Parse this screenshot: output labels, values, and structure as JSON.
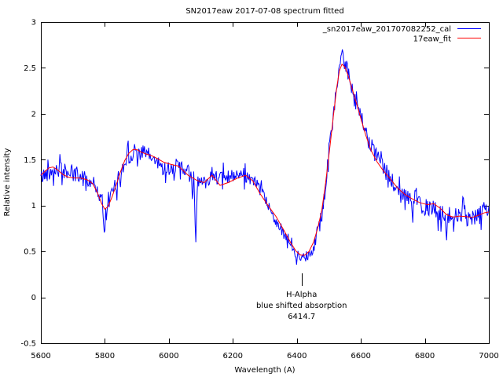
{
  "window": {
    "background": "#ffffff",
    "text_color": "#000000"
  },
  "chart_data": {
    "type": "line",
    "title": "SN2017eaw 2017-07-08 spectrum fitted",
    "xlabel": "Wavelength (A)",
    "ylabel": "Relative intensity",
    "xlim": [
      5600,
      7000
    ],
    "ylim": [
      -0.5,
      3
    ],
    "xticks": [
      5600,
      5800,
      6000,
      6200,
      6400,
      6600,
      6800,
      7000
    ],
    "xtick_labels": [
      "5600",
      "5800",
      "6000",
      "6200",
      "6400",
      "6600",
      "6800",
      "7000"
    ],
    "yticks": [
      -0.5,
      0,
      0.5,
      1,
      1.5,
      2,
      2.5,
      3
    ],
    "ytick_labels": [
      "-0.5",
      "0",
      "0.5",
      "1",
      "1.5",
      "2",
      "2.5",
      "3"
    ],
    "grid": false,
    "legend_position": "top-right-inside",
    "axis_color": "#000000",
    "annotation": {
      "lines": [
        "H-Alpha",
        "blue shifted absorption",
        "6414.7"
      ],
      "x_A": 6414.7,
      "marker": "vertical-tick"
    },
    "series": [
      {
        "name": "_sn2017eaw_201707082252_cal",
        "color": "#0000ff",
        "style": "noisy-spectrum",
        "derived": "fit_points plus seeded noise (see noise spec)"
      },
      {
        "name": "17eaw_fit",
        "color": "#ff0000",
        "style": "smooth-fit",
        "fit_points": [
          [
            5600,
            1.33
          ],
          [
            5612,
            1.37
          ],
          [
            5625,
            1.41
          ],
          [
            5638,
            1.42
          ],
          [
            5652,
            1.39
          ],
          [
            5668,
            1.34
          ],
          [
            5685,
            1.31
          ],
          [
            5705,
            1.3
          ],
          [
            5725,
            1.3
          ],
          [
            5745,
            1.28
          ],
          [
            5762,
            1.24
          ],
          [
            5778,
            1.13
          ],
          [
            5790,
            1.02
          ],
          [
            5800,
            0.96
          ],
          [
            5810,
            0.99
          ],
          [
            5822,
            1.09
          ],
          [
            5835,
            1.22
          ],
          [
            5848,
            1.36
          ],
          [
            5862,
            1.49
          ],
          [
            5875,
            1.57
          ],
          [
            5888,
            1.61
          ],
          [
            5900,
            1.61
          ],
          [
            5915,
            1.58
          ],
          [
            5930,
            1.56
          ],
          [
            5948,
            1.54
          ],
          [
            5965,
            1.51
          ],
          [
            5985,
            1.47
          ],
          [
            6005,
            1.45
          ],
          [
            6030,
            1.43
          ],
          [
            6060,
            1.33
          ],
          [
            6090,
            1.27
          ],
          [
            6110,
            1.25
          ],
          [
            6135,
            1.33
          ],
          [
            6160,
            1.22
          ],
          [
            6185,
            1.25
          ],
          [
            6215,
            1.3
          ],
          [
            6240,
            1.33
          ],
          [
            6262,
            1.27
          ],
          [
            6285,
            1.13
          ],
          [
            6310,
            1.0
          ],
          [
            6335,
            0.88
          ],
          [
            6358,
            0.74
          ],
          [
            6380,
            0.6
          ],
          [
            6398,
            0.5
          ],
          [
            6412,
            0.46
          ],
          [
            6425,
            0.46
          ],
          [
            6438,
            0.5
          ],
          [
            6452,
            0.6
          ],
          [
            6465,
            0.75
          ],
          [
            6478,
            0.95
          ],
          [
            6490,
            1.25
          ],
          [
            6502,
            1.6
          ],
          [
            6514,
            1.97
          ],
          [
            6524,
            2.27
          ],
          [
            6533,
            2.47
          ],
          [
            6541,
            2.54
          ],
          [
            6550,
            2.51
          ],
          [
            6560,
            2.42
          ],
          [
            6572,
            2.28
          ],
          [
            6586,
            2.12
          ],
          [
            6600,
            1.95
          ],
          [
            6615,
            1.77
          ],
          [
            6632,
            1.6
          ],
          [
            6650,
            1.48
          ],
          [
            6670,
            1.38
          ],
          [
            6692,
            1.29
          ],
          [
            6715,
            1.19
          ],
          [
            6738,
            1.12
          ],
          [
            6762,
            1.07
          ],
          [
            6785,
            1.03
          ],
          [
            6808,
            1.01
          ],
          [
            6828,
            1.02
          ],
          [
            6848,
            0.97
          ],
          [
            6868,
            0.9
          ],
          [
            6888,
            0.875
          ],
          [
            6908,
            0.885
          ],
          [
            6928,
            0.88
          ],
          [
            6948,
            0.87
          ],
          [
            6968,
            0.895
          ],
          [
            6985,
            0.92
          ],
          [
            7000,
            0.93
          ]
        ]
      }
    ],
    "noise": {
      "seed": 42,
      "step_A": 2.2,
      "amplitude_profile": [
        [
          5600,
          0.09
        ],
        [
          5800,
          0.095
        ],
        [
          5900,
          0.09
        ],
        [
          6050,
          0.085
        ],
        [
          6250,
          0.075
        ],
        [
          6340,
          0.055
        ],
        [
          6430,
          0.06
        ],
        [
          6470,
          0.09
        ],
        [
          6550,
          0.095
        ],
        [
          6650,
          0.09
        ],
        [
          6720,
          0.105
        ],
        [
          7000,
          0.105
        ]
      ],
      "spike_prob": 0.12,
      "spike_gain": 2.2,
      "spike_kernel_A": 5,
      "spikes": [
        [
          5798,
          -0.4
        ],
        [
          5806,
          -0.22
        ],
        [
          5872,
          0.2
        ],
        [
          6074,
          -0.22
        ],
        [
          6084,
          -0.72
        ],
        [
          6398,
          -0.13
        ],
        [
          6540,
          0.16
        ],
        [
          6760,
          -0.22
        ],
        [
          6868,
          -0.28
        ],
        [
          6920,
          0.3
        ]
      ],
      "wobble": [
        [
          0.035,
          0.0145,
          0
        ],
        [
          0.03,
          0.052,
          1.3
        ]
      ]
    }
  }
}
